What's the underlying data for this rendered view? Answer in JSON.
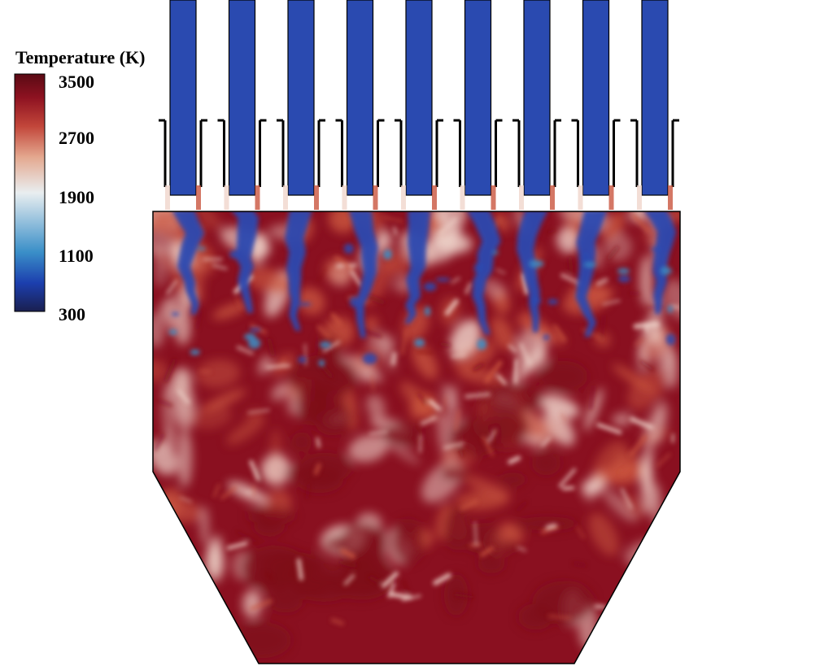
{
  "colorbar": {
    "title": "Temperature (K)",
    "min": 300,
    "max": 3500,
    "ticks": [
      "3500",
      "2700",
      "1900",
      "1100",
      "300"
    ],
    "colormap": [
      "#1a1f4f",
      "#1c3fae",
      "#3a8fc8",
      "#e9eef0",
      "#e4a88f",
      "#c2463a",
      "#8e1221",
      "#5a0a14"
    ]
  },
  "field_colors": {
    "cold_jet": "#2a4ab0",
    "hot_core": "#7e0d1a",
    "mixing_light": "#f0d6cc",
    "mixing_mid": "#c9553f",
    "wall": "#000000"
  },
  "injectors": {
    "count": 9
  }
}
